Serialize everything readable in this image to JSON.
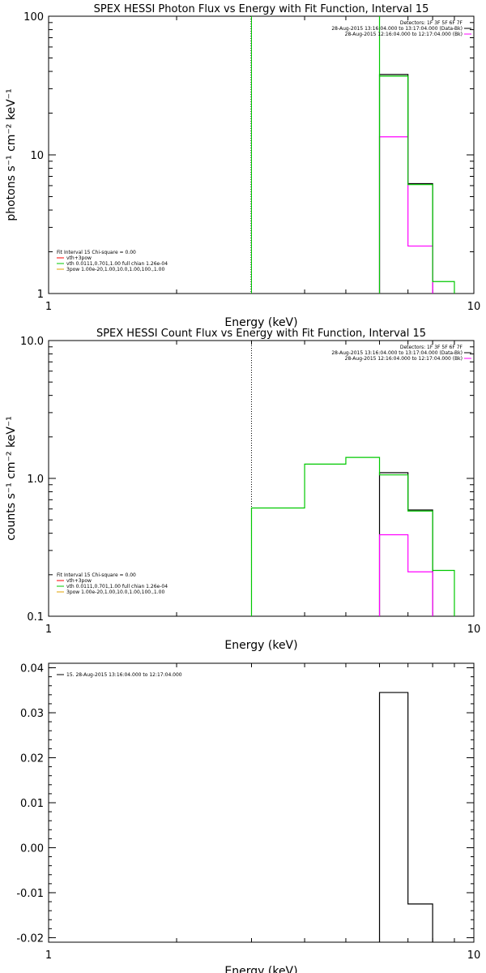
{
  "chart_data": [
    {
      "type": "line",
      "title": "SPEX HESSI Photon Flux vs Energy with Fit Function, Interval 15",
      "xlabel": "Energy (keV)",
      "ylabel": "photons s⁻¹ cm⁻² keV⁻¹",
      "xscale": "log",
      "yscale": "log",
      "xlim": [
        1,
        10
      ],
      "ylim": [
        1,
        100
      ],
      "xticks": [
        "1",
        "10"
      ],
      "yticks": [
        {
          "v": 1,
          "label": "1"
        },
        {
          "v": 10,
          "label": "10"
        },
        {
          "v": 100,
          "label": "100"
        }
      ],
      "vline": {
        "x": 3,
        "color": "#00c800",
        "style": "solid"
      },
      "header_lines": [
        {
          "text": "Detectors: 1F 3F 5F 6F 7F",
          "swatch": ""
        },
        {
          "text": "28-Aug-2015 13:16:04.000 to 13:17:04.000 (Data-Bk)",
          "swatch": "#000000"
        },
        {
          "text": "28-Aug-2015 12:16:04.000 to 12:17:04.000 (Bk)",
          "swatch": "#ff00ff"
        }
      ],
      "legend_lines": [
        {
          "text": "Fit Interval 15   Chi-square = 0.00",
          "swatch": ""
        },
        {
          "text": "vth+3pow",
          "swatch": "#ff0000"
        },
        {
          "text": "vth 0.0111,0.701,1.00   full chian 1.26e-04",
          "swatch": "#00c800"
        },
        {
          "text": "3pow 1.00e-20,1.00,10.0,1.00,100.,1.00",
          "swatch": "#e0a000"
        }
      ],
      "series": [
        {
          "color": "#000000",
          "steps": [
            [
              6,
              7,
              38
            ],
            [
              7,
              8,
              6.2
            ]
          ]
        },
        {
          "color": "#ff00ff",
          "steps": [
            [
              6,
              7,
              13.5
            ],
            [
              7,
              8,
              2.2
            ]
          ]
        },
        {
          "color": "#00c800",
          "steps": [
            [
              6,
              7,
              37
            ],
            [
              7,
              8,
              6.1
            ],
            [
              8,
              9,
              1.22
            ]
          ],
          "spike_x": 6
        }
      ]
    },
    {
      "type": "line",
      "title": "SPEX HESSI Count Flux vs Energy with Fit Function, Interval 15",
      "xlabel": "Energy (keV)",
      "ylabel": "counts s⁻¹ cm⁻² keV⁻¹",
      "xscale": "log",
      "yscale": "log",
      "xlim": [
        1,
        10
      ],
      "ylim": [
        0.1,
        10
      ],
      "xticks": [
        "1",
        "10"
      ],
      "yticks": [
        {
          "v": 0.1,
          "label": "0.1"
        },
        {
          "v": 1,
          "label": "1.0"
        },
        {
          "v": 10,
          "label": "10.0"
        }
      ],
      "vline": {
        "x": 3,
        "color": "#000000",
        "style": "dotted"
      },
      "header_lines": [
        {
          "text": "Detectors: 1F 3F 5F 6F 7F",
          "swatch": ""
        },
        {
          "text": "28-Aug-2015 13:16:04.000 to 13:17:04.000 (Data-Bk)",
          "swatch": "#000000"
        },
        {
          "text": "28-Aug-2015 12:16:04.000 to 12:17:04.000 (Bk)",
          "swatch": "#ff00ff"
        }
      ],
      "legend_lines": [
        {
          "text": "Fit Interval 15   Chi-square = 0.00",
          "swatch": ""
        },
        {
          "text": "vth+3pow",
          "swatch": "#ff0000"
        },
        {
          "text": "vth 0.0111,0.701,1.00   full chian 1.26e-04",
          "swatch": "#00c800"
        },
        {
          "text": "3pow 1.00e-20,1.00,10.0,1.00,100.,1.00",
          "swatch": "#e0a000"
        }
      ],
      "series": [
        {
          "color": "#000000",
          "steps": [
            [
              6,
              7,
              1.1
            ],
            [
              7,
              8,
              0.59
            ]
          ]
        },
        {
          "color": "#ff00ff",
          "steps": [
            [
              6,
              7,
              0.39
            ],
            [
              7,
              8,
              0.21
            ]
          ]
        },
        {
          "color": "#00c800",
          "steps": [
            [
              3,
              4,
              0.61
            ],
            [
              4,
              5,
              1.27
            ],
            [
              5,
              6,
              1.42
            ],
            [
              6,
              7,
              1.06
            ],
            [
              7,
              8,
              0.58
            ],
            [
              8,
              9,
              0.215
            ]
          ]
        }
      ]
    },
    {
      "type": "line",
      "title": "",
      "xlabel": "Energy (keV)",
      "ylabel": "",
      "xscale": "log",
      "yscale": "linear",
      "xlim": [
        1,
        10
      ],
      "ylim": [
        -0.021,
        0.041
      ],
      "xticks": [
        "1",
        "10"
      ],
      "yticks": [
        {
          "v": -0.02,
          "label": "-0.02"
        },
        {
          "v": -0.01,
          "label": "-0.01"
        },
        {
          "v": 0,
          "label": "0.00"
        },
        {
          "v": 0.01,
          "label": "0.01"
        },
        {
          "v": 0.02,
          "label": "0.02"
        },
        {
          "v": 0.03,
          "label": "0.03"
        },
        {
          "v": 0.04,
          "label": "0.04"
        }
      ],
      "legend_lines": [
        {
          "text": "15. 28-Aug-2015 13:16:04.000 to 12:17:04.000",
          "swatch": "#000000"
        }
      ],
      "series": [
        {
          "color": "#000000",
          "steps": [
            [
              6,
              7,
              0.0345
            ],
            [
              7,
              8,
              -0.0125
            ]
          ],
          "baseline": -0.021
        }
      ]
    }
  ]
}
